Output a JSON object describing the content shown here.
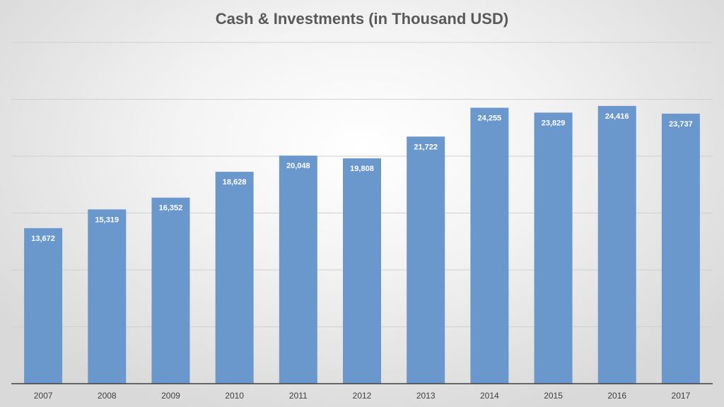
{
  "chart_data": {
    "type": "bar",
    "title": "Cash & Investments (in Thousand USD)",
    "xlabel": "",
    "ylabel": "",
    "categories": [
      "2007",
      "2008",
      "2009",
      "2010",
      "2011",
      "2012",
      "2013",
      "2014",
      "2015",
      "2016",
      "2017"
    ],
    "values": [
      13672,
      15319,
      16352,
      18628,
      20048,
      19808,
      21722,
      24255,
      23829,
      24416,
      23737
    ],
    "value_labels": [
      "13,672",
      "15,319",
      "16,352",
      "18,628",
      "20,048",
      "19,808",
      "21,722",
      "24,255",
      "23,829",
      "24,416",
      "23,737"
    ],
    "ylim": [
      0,
      30000
    ],
    "gridlines": [
      5000,
      10000,
      15000,
      20000,
      25000,
      30000
    ],
    "grid": true,
    "legend": "none",
    "bar_color": "#6b98cc"
  }
}
